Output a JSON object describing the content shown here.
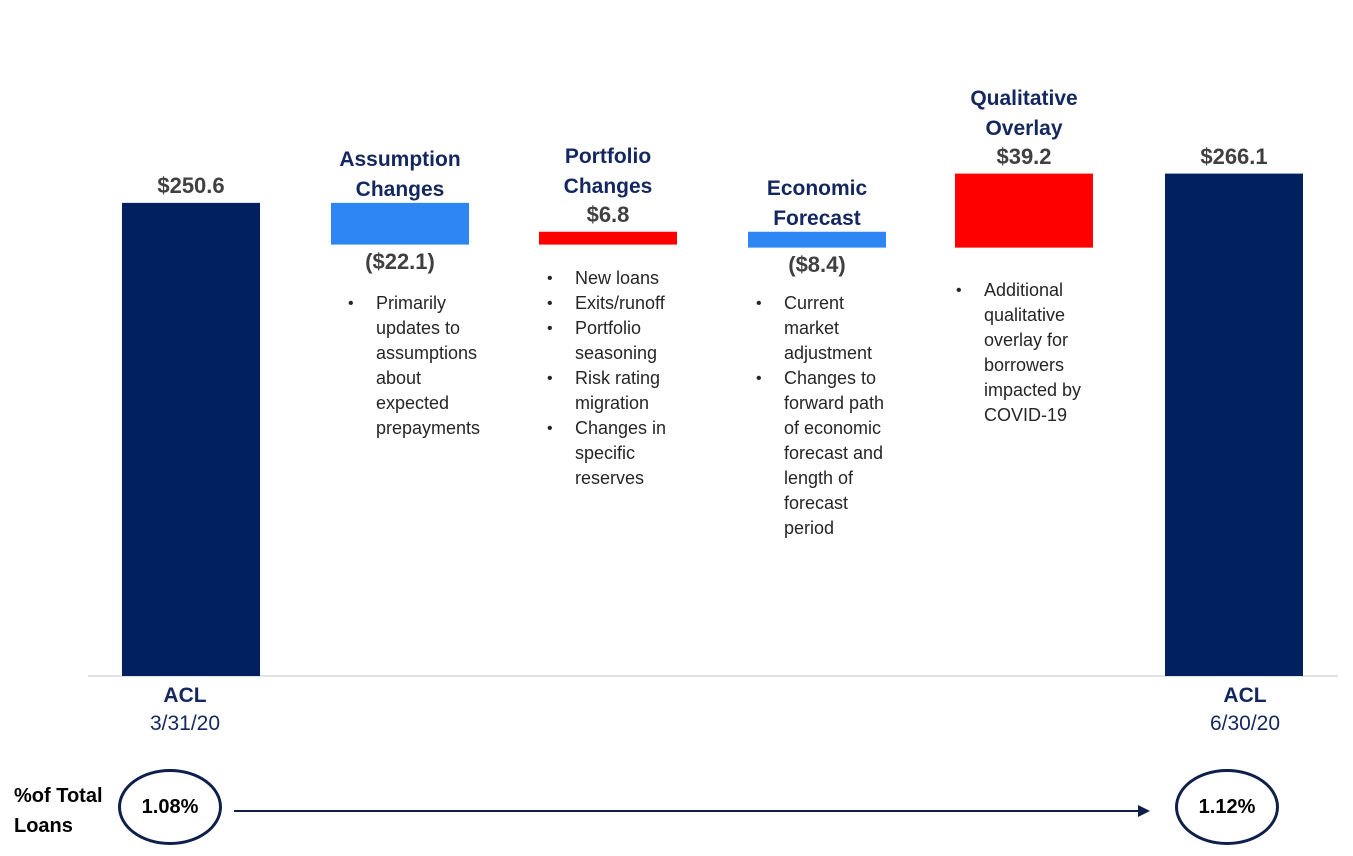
{
  "chart_data": {
    "type": "bar",
    "subtype": "waterfall",
    "ylim": [
      0,
      280
    ],
    "grid": false,
    "colors": {
      "total": "#002060",
      "decrease": "#2e86f5",
      "increase": "#ff0000",
      "title": "#14285f"
    },
    "categories": [
      {
        "id": "acl-start",
        "kind": "total",
        "value": 250.6,
        "label": "$250.6",
        "axis_title": "ACL",
        "axis_date": "3/31/20"
      },
      {
        "id": "assumption",
        "kind": "decrease",
        "value": -22.1,
        "label": "($22.1)",
        "title_lines": [
          "Assumption",
          "Changes"
        ],
        "bullets": [
          "Primarily updates to assumptions about expected prepayments"
        ]
      },
      {
        "id": "portfolio",
        "kind": "increase",
        "value": 6.8,
        "label": "$6.8",
        "title_lines": [
          "Portfolio",
          "Changes"
        ],
        "bullets": [
          "New loans",
          "Exits/runoff",
          "Portfolio seasoning",
          "Risk rating migration",
          "Changes in specific reserves"
        ]
      },
      {
        "id": "economic",
        "kind": "decrease",
        "value": -8.4,
        "label": "($8.4)",
        "title_lines": [
          "Economic",
          "Forecast"
        ],
        "bullets": [
          "Current market adjustment",
          "Changes to forward path of economic forecast and length of forecast period"
        ]
      },
      {
        "id": "qualitative",
        "kind": "increase",
        "value": 39.2,
        "label": "$39.2",
        "title_lines": [
          "Qualitative",
          "Overlay"
        ],
        "bullets": [
          "Additional qualitative overlay for borrowers impacted by COVID-19"
        ]
      },
      {
        "id": "acl-end",
        "kind": "total",
        "value": 266.1,
        "label": "$266.1",
        "axis_title": "ACL",
        "axis_date": "6/30/20"
      }
    ]
  },
  "pct_total": {
    "label_lines": [
      "%of Total",
      "Loans"
    ],
    "start": "1.08%",
    "end": "1.12%"
  }
}
